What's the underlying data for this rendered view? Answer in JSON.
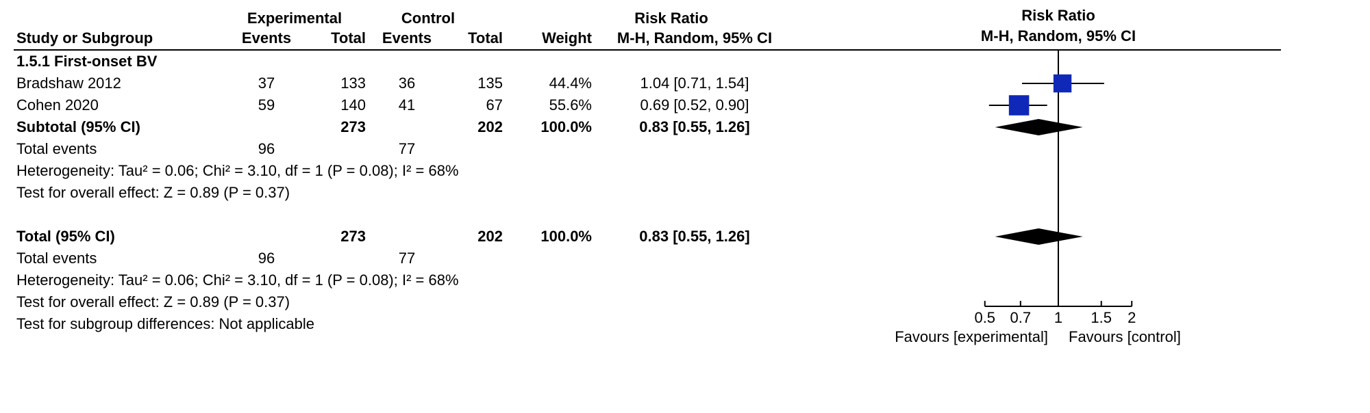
{
  "headers": {
    "exp_group": "Experimental",
    "ctl_group": "Control",
    "study": "Study or Subgroup",
    "events": "Events",
    "total": "Total",
    "weight": "Weight",
    "effect": "Risk Ratio",
    "effect_sub": "M-H, Random, 95% CI",
    "plot_title": "Risk Ratio",
    "plot_sub": "M-H, Random, 95% CI"
  },
  "subgroup": {
    "label": "1.5.1 First-onset BV"
  },
  "studies": [
    {
      "name": "Bradshaw 2012",
      "exp_events": "37",
      "exp_total": "133",
      "ctl_events": "36",
      "ctl_total": "135",
      "weight": "44.4%",
      "effect": "1.04 [0.71, 1.54]",
      "point": 1.04,
      "lo": 0.71,
      "hi": 1.54,
      "wt": 0.444
    },
    {
      "name": "Cohen 2020",
      "exp_events": "59",
      "exp_total": "140",
      "ctl_events": "41",
      "ctl_total": "67",
      "weight": "55.6%",
      "effect": "0.69 [0.52, 0.90]",
      "point": 0.69,
      "lo": 0.52,
      "hi": 0.9,
      "wt": 0.556
    }
  ],
  "subtotal": {
    "label": "Subtotal (95% CI)",
    "exp_total": "273",
    "ctl_total": "202",
    "weight": "100.0%",
    "effect": "0.83 [0.55, 1.26]",
    "point": 0.83,
    "lo": 0.55,
    "hi": 1.26
  },
  "sub_totevents": {
    "label": "Total events",
    "exp": "96",
    "ctl": "77"
  },
  "sub_het": "Heterogeneity: Tau² = 0.06; Chi² = 3.10, df = 1 (P = 0.08); I² = 68%",
  "sub_test": "Test for overall effect: Z = 0.89 (P = 0.37)",
  "total": {
    "label": "Total (95% CI)",
    "exp_total": "273",
    "ctl_total": "202",
    "weight": "100.0%",
    "effect": "0.83 [0.55, 1.26]",
    "point": 0.83,
    "lo": 0.55,
    "hi": 1.26
  },
  "tot_totevents": {
    "label": "Total events",
    "exp": "96",
    "ctl": "77"
  },
  "tot_het": "Heterogeneity: Tau² = 0.06; Chi² = 3.10, df = 1 (P = 0.08); I² = 68%",
  "tot_test": "Test for overall effect: Z = 0.89 (P = 0.37)",
  "tot_subdiff": "Test for subgroup differences: Not applicable",
  "plot": {
    "ticks": [
      0.5,
      0.7,
      1,
      1.5,
      2
    ],
    "xmin_log": -0.8,
    "xmax_log": 0.8,
    "favours_left": "Favours [experimental]",
    "favours_right": "Favours [control]",
    "marker_color": "#1028b8",
    "diamond_color": "#000000",
    "line_color": "#000000",
    "marker_base_size": 28
  }
}
